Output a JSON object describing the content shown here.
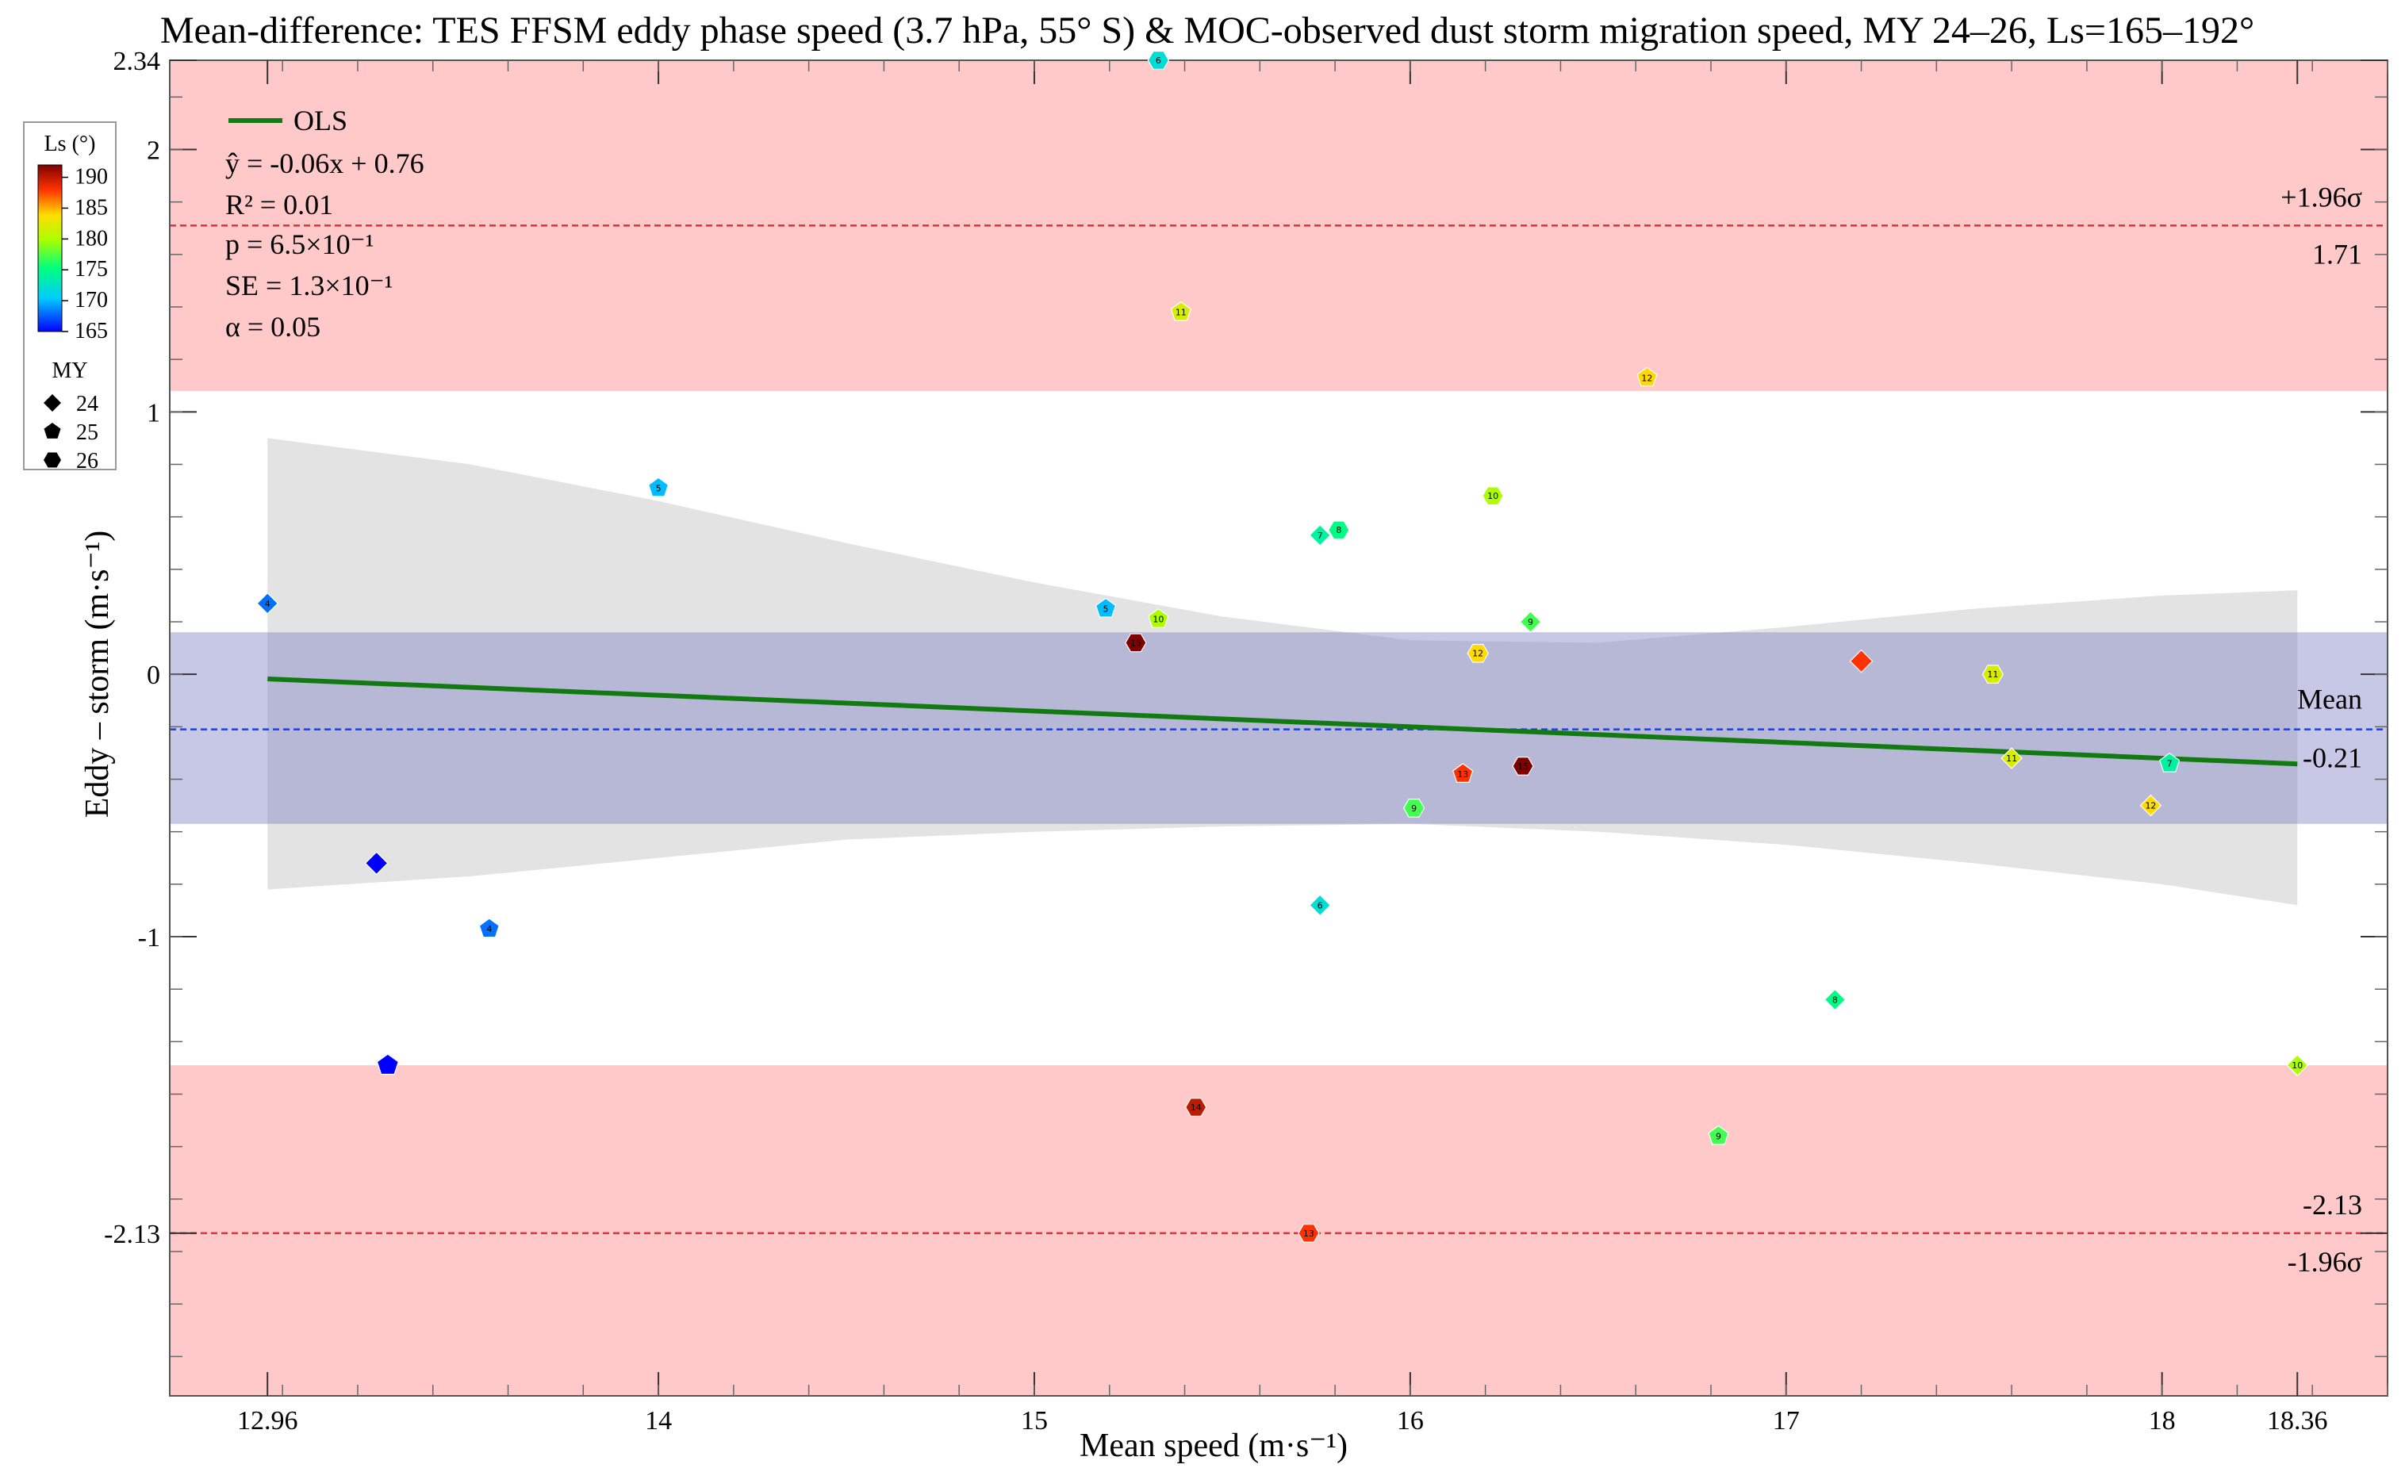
{
  "chart_data": {
    "type": "scatter",
    "title": "Mean-difference: TES FFSM eddy phase speed (3.7 hPa, 55° S) & MOC-observed dust storm migration speed, MY 24–26, Ls=165–192°",
    "xlabel": "Mean speed (m·s⁻¹)",
    "ylabel": "Eddy – storm (m·s⁻¹)",
    "xlim": [
      12.7,
      18.6
    ],
    "ylim": [
      -2.75,
      2.34
    ],
    "x_ticks": [
      "12.96",
      "14",
      "15",
      "16",
      "17",
      "18",
      "18.36"
    ],
    "y_ticks": [
      "2.34",
      "2",
      "1",
      "0",
      "-1",
      "-2.13"
    ],
    "mean_diff": -0.21,
    "mean_label": "Mean",
    "mean_value_label": "-0.21",
    "upper_loa": 1.71,
    "upper_label": "+1.96σ",
    "upper_value_label": "1.71",
    "lower_loa": -2.13,
    "lower_label": "-1.96σ",
    "lower_value_label": "-2.13",
    "mean_band": [
      -0.57,
      0.16
    ],
    "outlier_band_upper": 1.08,
    "outlier_band_lower": -1.49,
    "ols": {
      "slope": -0.06,
      "intercept": 0.76,
      "x_range": [
        12.96,
        18.36
      ]
    },
    "confidence_band": {
      "x": [
        12.96,
        13.5,
        14.0,
        14.5,
        15.0,
        15.5,
        16.0,
        16.5,
        17.0,
        17.5,
        18.0,
        18.36
      ],
      "upper": [
        0.9,
        0.8,
        0.66,
        0.5,
        0.35,
        0.22,
        0.13,
        0.12,
        0.18,
        0.25,
        0.3,
        0.32
      ],
      "lower": [
        -0.82,
        -0.77,
        -0.7,
        -0.63,
        -0.6,
        -0.58,
        -0.57,
        -0.6,
        -0.65,
        -0.72,
        -0.8,
        -0.88
      ]
    },
    "stats": {
      "ols_label": "OLS",
      "equation": "ŷ = -0.06x + 0.76",
      "r2": "R² = 0.01",
      "p": "p = 6.5×10⁻¹",
      "se": "SE = 1.3×10⁻¹",
      "alpha": "α = 0.05"
    },
    "colorbar": {
      "title": "Ls (°)",
      "ticks": [
        "190",
        "185",
        "180",
        "175",
        "170",
        "165"
      ],
      "range": [
        165,
        192
      ]
    },
    "my_legend": {
      "title": "MY",
      "entries": [
        "24",
        "25",
        "26"
      ]
    },
    "points": [
      {
        "x": 12.96,
        "y": 0.27,
        "ls": 168,
        "my": 24,
        "label": "4"
      },
      {
        "x": 13.25,
        "y": -0.72,
        "ls": 165,
        "my": 24,
        "label": ""
      },
      {
        "x": 13.28,
        "y": -1.49,
        "ls": 165,
        "my": 25,
        "label": ""
      },
      {
        "x": 13.55,
        "y": -0.97,
        "ls": 168,
        "my": 25,
        "label": "4"
      },
      {
        "x": 14.0,
        "y": 0.71,
        "ls": 170,
        "my": 25,
        "label": "5"
      },
      {
        "x": 15.19,
        "y": 0.25,
        "ls": 170,
        "my": 25,
        "label": "5"
      },
      {
        "x": 15.27,
        "y": 0.12,
        "ls": 192,
        "my": 26,
        "label": "15"
      },
      {
        "x": 15.33,
        "y": 0.21,
        "ls": 180,
        "my": 25,
        "label": "10"
      },
      {
        "x": 15.33,
        "y": 2.34,
        "ls": 172,
        "my": 26,
        "label": "6"
      },
      {
        "x": 15.39,
        "y": 1.38,
        "ls": 182,
        "my": 25,
        "label": "11"
      },
      {
        "x": 15.43,
        "y": -1.65,
        "ls": 190,
        "my": 26,
        "label": "14"
      },
      {
        "x": 15.73,
        "y": -2.13,
        "ls": 188,
        "my": 26,
        "label": "13"
      },
      {
        "x": 15.76,
        "y": 0.53,
        "ls": 174,
        "my": 24,
        "label": "7"
      },
      {
        "x": 15.76,
        "y": -0.88,
        "ls": 172,
        "my": 24,
        "label": "6"
      },
      {
        "x": 15.81,
        "y": 0.55,
        "ls": 175,
        "my": 26,
        "label": "8"
      },
      {
        "x": 16.01,
        "y": -0.51,
        "ls": 177,
        "my": 26,
        "label": "9"
      },
      {
        "x": 16.14,
        "y": -0.38,
        "ls": 188,
        "my": 25,
        "label": "13"
      },
      {
        "x": 16.18,
        "y": 0.08,
        "ls": 184,
        "my": 26,
        "label": "12"
      },
      {
        "x": 16.22,
        "y": 0.68,
        "ls": 180,
        "my": 26,
        "label": "10"
      },
      {
        "x": 16.3,
        "y": -0.35,
        "ls": 192,
        "my": 26,
        "label": "15"
      },
      {
        "x": 16.32,
        "y": 0.2,
        "ls": 177,
        "my": 24,
        "label": "9"
      },
      {
        "x": 16.63,
        "y": 1.13,
        "ls": 184,
        "my": 25,
        "label": "12"
      },
      {
        "x": 16.82,
        "y": -1.76,
        "ls": 177,
        "my": 25,
        "label": "9"
      },
      {
        "x": 17.13,
        "y": -1.24,
        "ls": 175,
        "my": 24,
        "label": "8"
      },
      {
        "x": 17.2,
        "y": 0.05,
        "ls": 188,
        "my": 24,
        "label": ""
      },
      {
        "x": 17.55,
        "y": 0.0,
        "ls": 182,
        "my": 26,
        "label": "11"
      },
      {
        "x": 17.6,
        "y": -0.32,
        "ls": 182,
        "my": 24,
        "label": "11"
      },
      {
        "x": 17.97,
        "y": -0.5,
        "ls": 184,
        "my": 24,
        "label": "12"
      },
      {
        "x": 18.02,
        "y": -0.34,
        "ls": 174,
        "my": 25,
        "label": "7"
      },
      {
        "x": 18.36,
        "y": -1.49,
        "ls": 180,
        "my": 24,
        "label": "10"
      }
    ]
  }
}
